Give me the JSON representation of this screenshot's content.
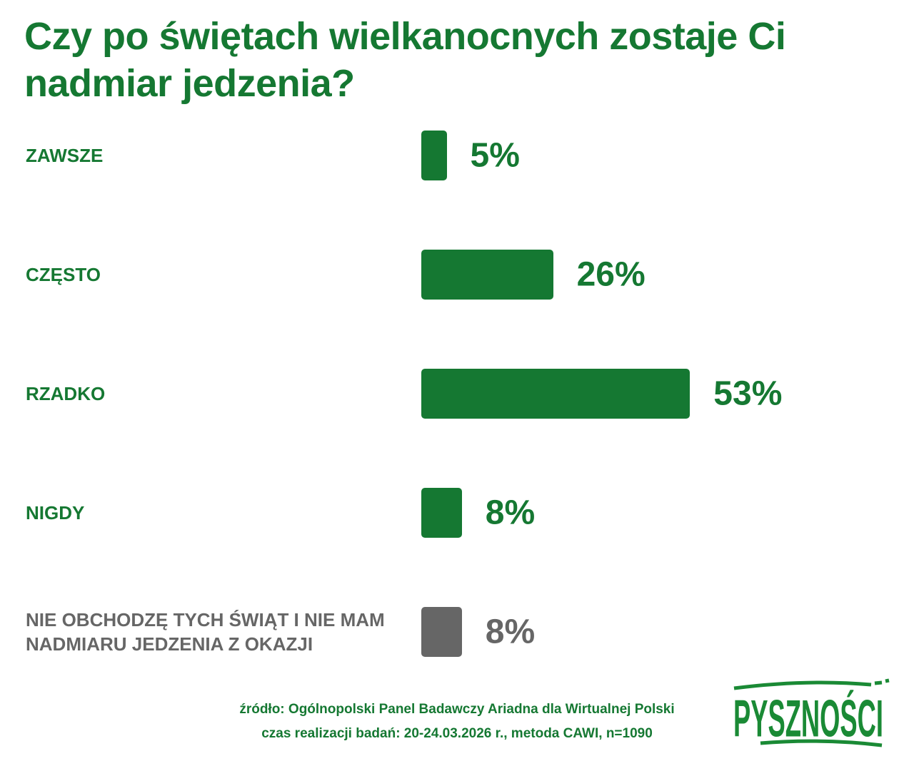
{
  "chart_data": {
    "type": "bar",
    "orientation": "horizontal",
    "title": "Czy po świętach wielkanocnych zostaje Ci nadmiar jedzenia?",
    "categories": [
      "ZAWSZE",
      "CZĘSTO",
      "RZADKO",
      "NIGDY",
      "NIE OBCHODZĘ TYCH ŚWIĄT I NIE MAM NADMIARU JEDZENIA Z OKAZJI"
    ],
    "values": [
      5,
      26,
      53,
      8,
      8
    ],
    "value_labels": [
      "5%",
      "26%",
      "53%",
      "8%",
      "8%"
    ],
    "colors": [
      "#157832",
      "#157832",
      "#157832",
      "#157832",
      "#666666"
    ],
    "xlim": [
      0,
      100
    ],
    "grid": false
  },
  "footer": {
    "source": "źródło: Ogólnopolski Panel Badawczy Ariadna dla Wirtualnej Polski",
    "method": "czas realizacji badań: 20-24.03.2026 r., metoda CAWI, n=1090"
  },
  "logo": {
    "text": "PYSZNOŚCI",
    "color": "#1a8a35"
  }
}
